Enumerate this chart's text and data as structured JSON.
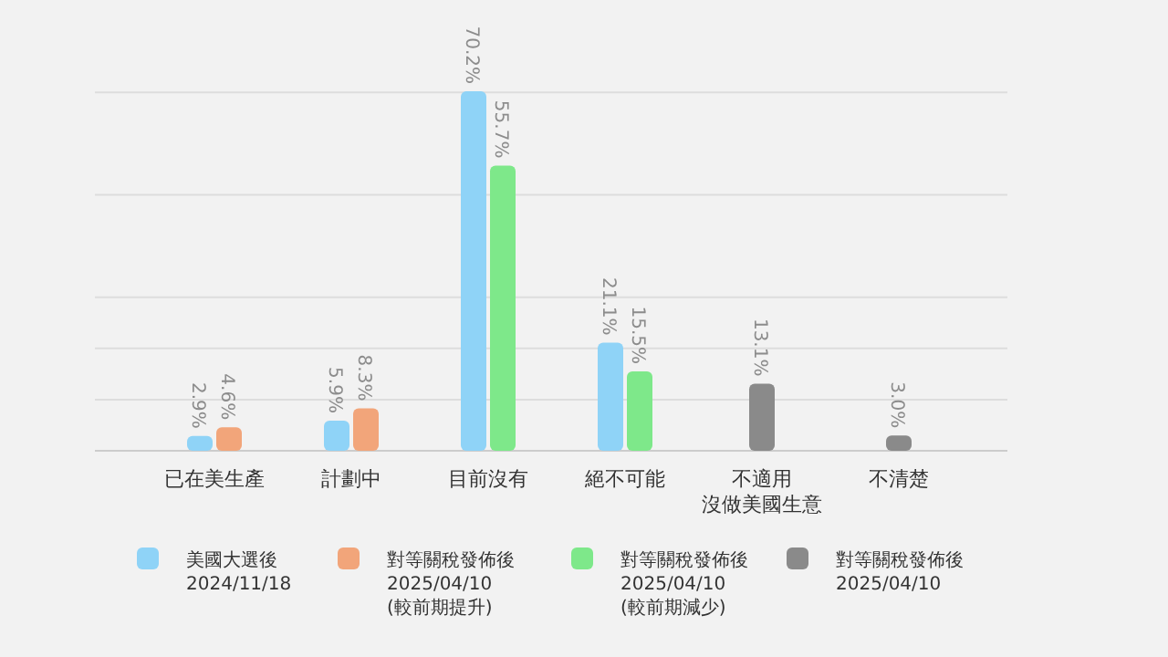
{
  "chart_data": {
    "type": "bar",
    "categories": [
      "已在美生產",
      "計劃中",
      "目前沒有",
      "絕不可能",
      "不適用沒做美國生意",
      "不清楚"
    ],
    "series": [
      {
        "name": "美國大選後\n2024/11/18",
        "color": "#8fd3f7",
        "values": [
          2.9,
          5.9,
          70.2,
          21.1,
          null,
          null
        ],
        "value_labels": [
          "2.9%",
          "5.9%",
          "70.2%",
          "21.1%",
          null,
          null
        ]
      },
      {
        "name": "對等關稅發佈後\n2025/04/10\n(較前期提升)",
        "color": "#f2a57a",
        "values": [
          4.6,
          8.3,
          null,
          null,
          null,
          null
        ],
        "value_labels": [
          "4.6%",
          "8.3%",
          null,
          null,
          null,
          null
        ]
      },
      {
        "name": "對等關稅發佈後\n2025/04/10\n(較前期減少)",
        "color": "#7ee88a",
        "values": [
          null,
          null,
          55.7,
          15.5,
          null,
          null
        ],
        "value_labels": [
          null,
          null,
          "55.7%",
          "15.5%",
          null,
          null
        ]
      },
      {
        "name": "對等關稅發佈後\n2025/04/10",
        "color": "#8a8a8a",
        "values": [
          null,
          null,
          null,
          null,
          13.1,
          3.0
        ],
        "value_labels": [
          null,
          null,
          null,
          null,
          "13.1%",
          "3.0%"
        ]
      }
    ],
    "yticks": [
      {
        "value": 10,
        "label": null
      },
      {
        "value": 20,
        "label": null
      },
      {
        "value": 30,
        "label": null
      },
      {
        "value": 50,
        "label": null
      },
      {
        "value": 70,
        "label": null
      }
    ],
    "grid": "y",
    "legend": "bottom"
  }
}
